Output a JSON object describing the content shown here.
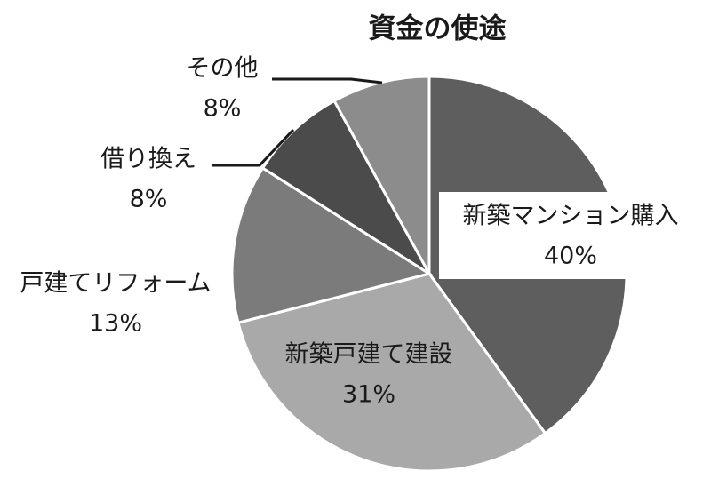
{
  "chart_data": {
    "type": "pie",
    "title": "資金の使途",
    "categories": [
      "新築マンション購入",
      "新築戸建て建設",
      "戸建てリフォーム",
      "借り換え",
      "その他"
    ],
    "values": [
      40,
      31,
      13,
      8,
      8
    ],
    "value_labels": [
      "40%",
      "31%",
      "13%",
      "8%",
      "8%"
    ],
    "colors": [
      "#5e5e5e",
      "#a9a9a9",
      "#7b7b7b",
      "#4b4b4b",
      "#8c8c8c"
    ]
  }
}
